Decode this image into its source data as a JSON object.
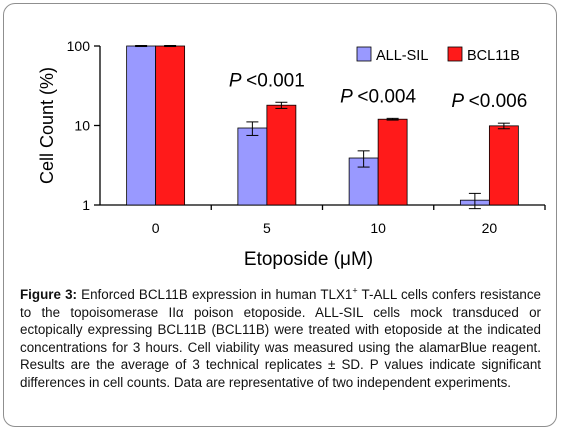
{
  "chart_data": {
    "type": "bar",
    "y_scale": "log",
    "ylim": [
      1,
      100
    ],
    "yticks": [
      "100",
      "10",
      "1"
    ],
    "ylabel": "Cell Count (%)",
    "xlabel": "Etoposide (μM)",
    "categories": [
      "0",
      "5",
      "10",
      "20"
    ],
    "series": [
      {
        "name": "ALL-SIL",
        "color": "#9999ff",
        "values": [
          100,
          9.3,
          3.9,
          1.15
        ],
        "errors": [
          1.5,
          1.8,
          0.9,
          0.25
        ]
      },
      {
        "name": "BCL11B",
        "color": "#ff1a1a",
        "values": [
          100,
          18.0,
          12.0,
          9.9
        ],
        "errors": [
          1.5,
          1.6,
          0.3,
          0.8
        ]
      }
    ],
    "annotations": [
      {
        "category": "5",
        "p_symbol": "P",
        "text": "<0.001"
      },
      {
        "category": "10",
        "p_symbol": "P",
        "text": "<0.004"
      },
      {
        "category": "20",
        "p_symbol": "P",
        "text": "<0.006"
      }
    ],
    "legend_position": "top-right",
    "grid": false
  },
  "caption": {
    "label": "Figure 3:",
    "text_before_sup": "Enforced BCL11B expression in human TLX1",
    "sup": "+",
    "text_after_sup": " T-ALL cells confers resistance to the topoisomerase IIα poison etoposide. ALL-SIL cells mock transduced or ectopically expressing BCL11B (BCL11B) were treated with etoposide at the indicated concentrations for 3 hours. Cell viability was measured using the alamarBlue reagent. Results are the average of 3 technical replicates ± SD. P values indicate significant differences in cell counts. Data are representative of two independent experiments."
  }
}
